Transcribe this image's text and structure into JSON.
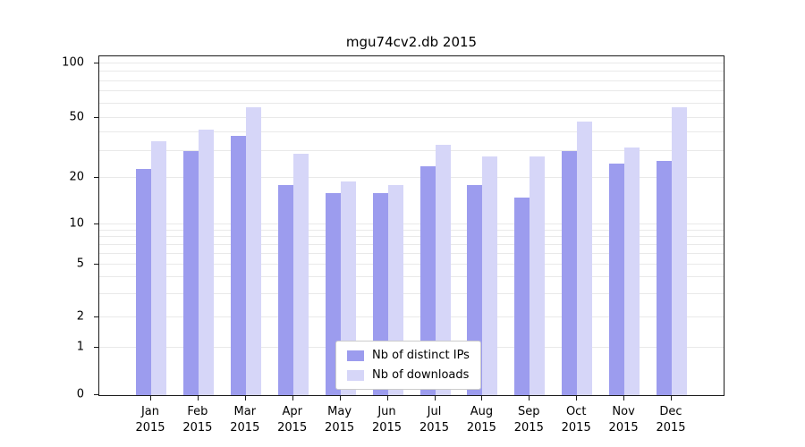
{
  "title": "mgu74cv2.db 2015",
  "colors": {
    "bar_distinct_ips": "#9c9cee",
    "bar_downloads": "#d6d6f8",
    "gridline": "#e9e9e9",
    "spine": "#1a1a1a",
    "background": "#ffffff"
  },
  "chart_data": {
    "type": "bar",
    "title": "mgu74cv2.db 2015",
    "categories": [
      "Jan",
      "Feb",
      "Mar",
      "Apr",
      "May",
      "Jun",
      "Jul",
      "Aug",
      "Sep",
      "Oct",
      "Nov",
      "Dec"
    ],
    "x_sublabel": "2015",
    "series": [
      {
        "name": "Nb of distinct IPs",
        "color": "#9c9cee",
        "values": [
          23,
          30,
          38,
          18,
          16,
          16,
          24,
          18,
          15,
          30,
          25,
          26
        ]
      },
      {
        "name": "Nb of downloads",
        "color": "#d6d6f8",
        "values": [
          35,
          42,
          57,
          29,
          19,
          18,
          33,
          28,
          28,
          47,
          32,
          57
        ]
      }
    ],
    "yscale": "symlog",
    "ylim": [
      0,
      110
    ],
    "yticks": [
      0,
      1,
      2,
      5,
      10,
      20,
      50,
      100
    ],
    "gridlines": [
      1,
      2,
      3,
      4,
      5,
      6,
      7,
      8,
      9,
      10,
      20,
      30,
      40,
      50,
      60,
      70,
      80,
      90,
      100
    ],
    "grid": true,
    "legend_position": "lower center"
  }
}
